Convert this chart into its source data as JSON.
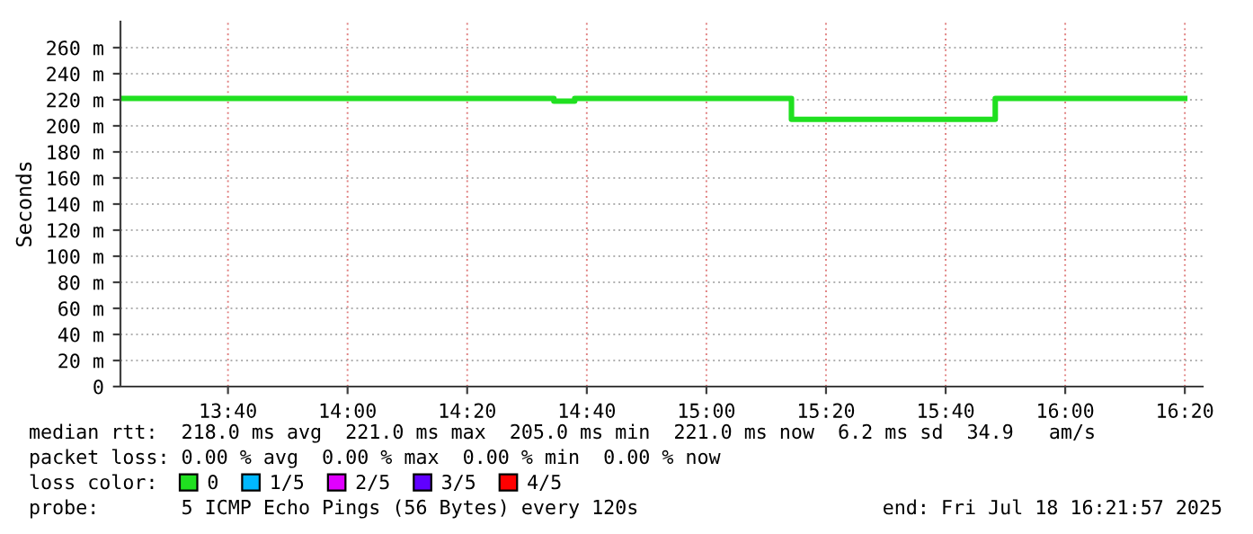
{
  "chart_data": {
    "type": "step",
    "ylabel": "Seconds",
    "x": [
      13.367,
      14.575,
      14.633,
      15.237,
      15.805,
      16.333
    ],
    "series": [
      {
        "name": "0",
        "color": "#20e020",
        "values": [
          221,
          219,
          221,
          205,
          221,
          221
        ]
      },
      {
        "name": "1/5",
        "color": "#00b8ff",
        "values": [
          null,
          null,
          null,
          null,
          null,
          null
        ]
      },
      {
        "name": "2/5",
        "color": "#e000ff",
        "values": [
          null,
          null,
          null,
          null,
          null,
          null
        ]
      },
      {
        "name": "3/5",
        "color": "#6000ff",
        "values": [
          null,
          null,
          null,
          null,
          null,
          null
        ]
      },
      {
        "name": "4/5",
        "color": "#ff0000",
        "values": [
          null,
          null,
          null,
          null,
          null,
          null
        ]
      }
    ],
    "xlim": [
      13.367,
      16.383
    ],
    "xticks": [
      {
        "value": 13.6667,
        "label": "13:40"
      },
      {
        "value": 14.0,
        "label": "14:00"
      },
      {
        "value": 14.3333,
        "label": "14:20"
      },
      {
        "value": 14.6667,
        "label": "14:40"
      },
      {
        "value": 15.0,
        "label": "15:00"
      },
      {
        "value": 15.3333,
        "label": "15:20"
      },
      {
        "value": 15.6667,
        "label": "15:40"
      },
      {
        "value": 16.0,
        "label": "16:00"
      },
      {
        "value": 16.3333,
        "label": "16:20"
      }
    ],
    "ylim": [
      0,
      280
    ],
    "yticks": [
      0,
      {
        "value": 20,
        "label": "20 m"
      },
      {
        "value": 40,
        "label": "40 m"
      },
      {
        "value": 60,
        "label": "60 m"
      },
      {
        "value": 80,
        "label": "80 m"
      },
      {
        "value": 100,
        "label": "100 m"
      },
      {
        "value": 120,
        "label": "120 m"
      },
      {
        "value": 140,
        "label": "140 m"
      },
      {
        "value": 160,
        "label": "160 m"
      },
      {
        "value": 180,
        "label": "180 m"
      },
      {
        "value": 200,
        "label": "200 m"
      },
      {
        "value": 220,
        "label": "220 m"
      },
      {
        "value": 240,
        "label": "240 m"
      },
      {
        "value": 260,
        "label": "260 m"
      }
    ],
    "grid": true,
    "legend": "bottom",
    "legend_title": "loss color:",
    "annotations": [
      "median rtt:  218.0 ms avg  221.0 ms max  205.0 ms min  221.0 ms now  6.2 ms sd  34.9   am/s",
      "packet loss: 0.00 % avg  0.00 % max  0.00 % min  0.00 % now",
      "probe:       5 ICMP Echo Pings (56 Bytes) every 120s",
      "end: Fri Jul 18 16:21:57 2025"
    ]
  }
}
